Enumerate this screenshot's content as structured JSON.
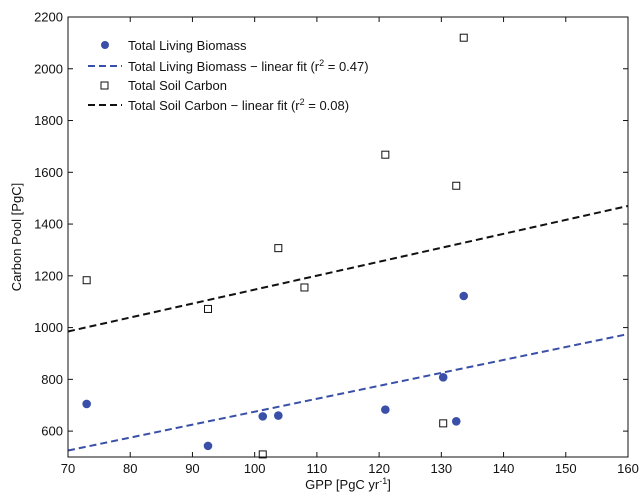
{
  "chart_data": {
    "type": "scatter",
    "xlabel": "GPP [PgC yr",
    "xlabel_sup": "-1",
    "xlabel_close": "]",
    "ylabel": "Carbon Pool [PgC]",
    "xlim": [
      70,
      160
    ],
    "ylim": [
      500,
      2200
    ],
    "xticks": [
      "70",
      "80",
      "90",
      "100",
      "110",
      "120",
      "130",
      "140",
      "150",
      "160"
    ],
    "yticks": [
      "600",
      "800",
      "1000",
      "1200",
      "1400",
      "1600",
      "1800",
      "2000",
      "2200"
    ],
    "grid": false,
    "legend_position": "top-left",
    "series": [
      {
        "name": "Total Living Biomass",
        "marker": "filled-circle",
        "color": "#3a50a8",
        "points": [
          [
            73,
            705
          ],
          [
            92.5,
            543
          ],
          [
            101.3,
            657
          ],
          [
            103.8,
            660
          ],
          [
            121,
            683
          ],
          [
            130.3,
            808
          ],
          [
            132.4,
            638
          ],
          [
            133.6,
            1122
          ]
        ]
      },
      {
        "name": "Total Soil Carbon",
        "marker": "open-square",
        "color": "#111111",
        "points": [
          [
            73,
            1183
          ],
          [
            92.5,
            1072
          ],
          [
            101.3,
            510
          ],
          [
            103.8,
            1307
          ],
          [
            108,
            1155
          ],
          [
            121,
            1668
          ],
          [
            130.3,
            630
          ],
          [
            132.4,
            1548
          ],
          [
            133.6,
            2120
          ]
        ]
      }
    ],
    "fits": [
      {
        "name": "Total Living Biomass",
        "name_suffix": " − linear fit (r",
        "r2_sup": "2",
        "r2_value": " = 0.47)",
        "color": "#3a50a8",
        "x": [
          70,
          160
        ],
        "y": [
          525,
          975
        ]
      },
      {
        "name": "Total Soil Carbon",
        "name_suffix": " − linear fit (r",
        "r2_sup": "2",
        "r2_value": " = 0.08)",
        "color": "#111111",
        "x": [
          70,
          160
        ],
        "y": [
          985,
          1470
        ]
      }
    ]
  }
}
